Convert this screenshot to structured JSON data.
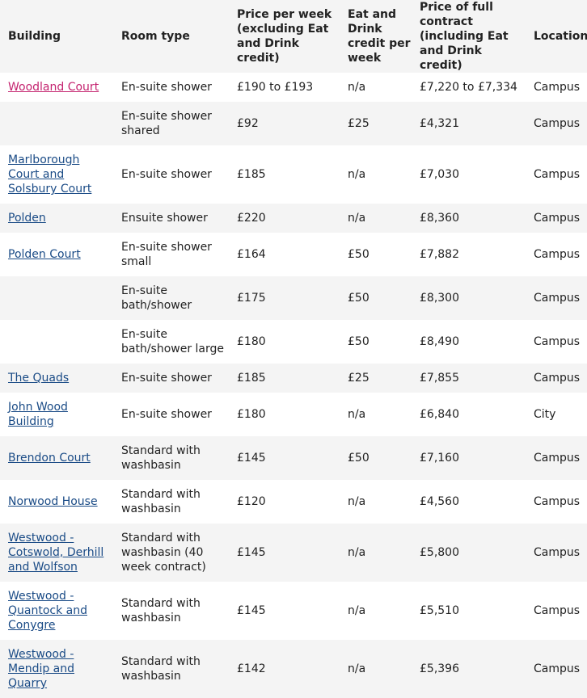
{
  "headers": {
    "building": "Building",
    "room_type": "Room type",
    "price_week": "Price per week (excluding Eat and Drink credit)",
    "credit_week": "Eat and Drink credit per week",
    "price_contract": "Price of full contract (including Eat and Drink credit)",
    "location": "Location"
  },
  "rows": [
    {
      "building": "Woodland Court",
      "room_type": "En-suite shower",
      "price_week": "£190 to £193",
      "credit_week": "n/a",
      "price_contract": "£7,220 to £7,334",
      "location": "Campus"
    },
    {
      "building": "",
      "room_type": "En-suite shower shared",
      "price_week": "£92",
      "credit_week": "£25",
      "price_contract": "£4,321",
      "location": "Campus"
    },
    {
      "building": "Marlborough Court and Solsbury Court",
      "room_type": "En-suite shower",
      "price_week": "£185",
      "credit_week": "n/a",
      "price_contract": "£7,030",
      "location": "Campus"
    },
    {
      "building": "Polden",
      "room_type": "Ensuite shower",
      "price_week": "£220",
      "credit_week": "n/a",
      "price_contract": "£8,360",
      "location": "Campus"
    },
    {
      "building": "Polden Court",
      "room_type": "En-suite shower small",
      "price_week": "£164",
      "credit_week": "£50",
      "price_contract": "£7,882",
      "location": "Campus"
    },
    {
      "building": "",
      "room_type": "En-suite bath/shower",
      "price_week": "£175",
      "credit_week": "£50",
      "price_contract": "£8,300",
      "location": "Campus"
    },
    {
      "building": "",
      "room_type": "En-suite bath/shower large",
      "price_week": "£180",
      "credit_week": "£50",
      "price_contract": "£8,490",
      "location": "Campus"
    },
    {
      "building": "The Quads",
      "room_type": "En-suite shower",
      "price_week": "£185",
      "credit_week": "£25",
      "price_contract": "£7,855",
      "location": "Campus"
    },
    {
      "building": "John Wood Building",
      "room_type": "En-suite shower",
      "price_week": "£180",
      "credit_week": "n/a",
      "price_contract": "£6,840",
      "location": "City"
    },
    {
      "building": "Brendon Court",
      "room_type": "Standard with washbasin",
      "price_week": "£145",
      "credit_week": "£50",
      "price_contract": "£7,160",
      "location": "Campus"
    },
    {
      "building": "Norwood House",
      "room_type": "Standard with washbasin",
      "price_week": "£120",
      "credit_week": "n/a",
      "price_contract": "£4,560",
      "location": "Campus"
    },
    {
      "building": "Westwood - Cotswold, Derhill and Wolfson",
      "room_type": "Standard with washbasin (40 week contract)",
      "price_week": "£145",
      "credit_week": "n/a",
      "price_contract": "£5,800",
      "location": "Campus"
    },
    {
      "building": "Westwood - Quantock and Conygre",
      "room_type": "Standard with washbasin",
      "price_week": "£145",
      "credit_week": "n/a",
      "price_contract": "£5,510",
      "location": "Campus"
    },
    {
      "building": "Westwood - Mendip and Quarry",
      "room_type": "Standard with washbasin",
      "price_week": "£142",
      "credit_week": "n/a",
      "price_contract": "£5,396",
      "location": "Campus"
    }
  ],
  "colors": {
    "link": "#1a4b86",
    "visited_link": "#c4236f",
    "stripe": "#f4f4f4",
    "text": "#222222"
  }
}
